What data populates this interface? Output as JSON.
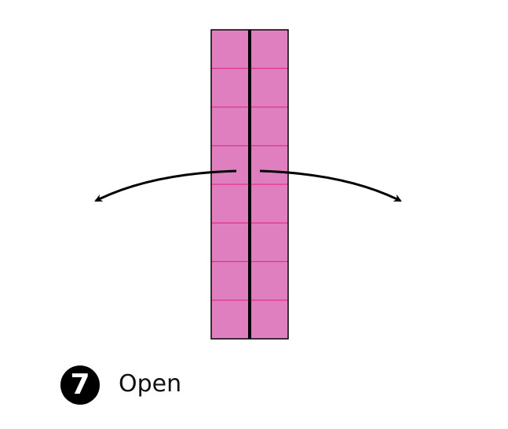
{
  "step": {
    "number": "7",
    "instruction": "Open"
  },
  "diagram": {
    "paper_color": "#e07fc0",
    "crease_color": "#e0338f",
    "fold_line_color": "#000000",
    "outline_color": "#000000",
    "arrow_color": "#000000",
    "columns": 2,
    "rows": 8,
    "arrows": [
      "open-left-arrow",
      "open-right-arrow"
    ]
  }
}
